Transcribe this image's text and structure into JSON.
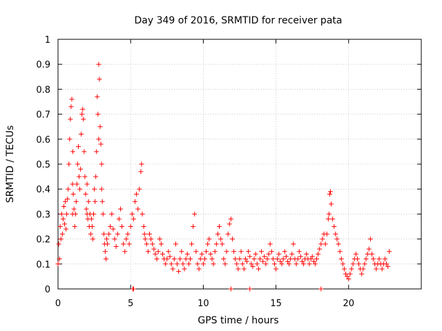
{
  "chart_data": {
    "type": "scatter",
    "title": "Day 349 of 2016, SRMTID for receiver pata",
    "xlabel": "GPS time / hours",
    "ylabel": "SRMTID / TECUs",
    "xlim": [
      0,
      25
    ],
    "ylim": [
      0,
      1
    ],
    "xticks": [
      0,
      5,
      10,
      15,
      20
    ],
    "yticks": [
      0,
      0.1,
      0.2,
      0.3,
      0.4,
      0.5,
      0.6,
      0.7,
      0.8,
      0.9,
      1
    ],
    "grid": true,
    "marker": "+",
    "series": [
      {
        "name": "pata",
        "color": "#ff0000",
        "x": [
          0.0,
          0.05,
          0.1,
          0.15,
          0.2,
          0.25,
          0.3,
          0.35,
          0.4,
          0.45,
          0.5,
          0.55,
          0.6,
          0.65,
          0.7,
          0.75,
          0.8,
          0.85,
          0.9,
          0.95,
          1.0,
          1.0,
          1.02,
          1.05,
          1.1,
          1.15,
          1.2,
          1.25,
          1.3,
          1.35,
          1.4,
          1.45,
          1.5,
          1.55,
          1.6,
          1.65,
          1.7,
          1.75,
          1.8,
          1.85,
          1.9,
          1.95,
          2.0,
          2.0,
          2.05,
          2.1,
          2.15,
          2.2,
          2.25,
          2.3,
          2.35,
          2.4,
          2.45,
          2.5,
          2.55,
          2.6,
          2.65,
          2.7,
          2.75,
          2.8,
          2.8,
          2.85,
          2.9,
          2.95,
          3.0,
          3.0,
          3.05,
          3.1,
          3.15,
          3.2,
          3.25,
          3.3,
          3.35,
          3.4,
          3.5,
          3.6,
          3.7,
          3.8,
          3.9,
          4.0,
          4.1,
          4.2,
          4.3,
          4.4,
          4.5,
          4.6,
          4.7,
          4.8,
          4.9,
          5.0,
          5.1,
          5.2,
          5.3,
          5.4,
          5.5,
          5.6,
          5.7,
          5.75,
          5.8,
          5.9,
          5.95,
          6.0,
          6.1,
          6.2,
          6.3,
          6.4,
          6.5,
          6.6,
          6.7,
          6.8,
          6.9,
          7.0,
          7.1,
          7.2,
          7.3,
          7.4,
          7.5,
          7.6,
          7.7,
          7.8,
          7.9,
          8.0,
          8.1,
          8.2,
          8.3,
          8.4,
          8.5,
          8.6,
          8.7,
          8.8,
          8.9,
          9.0,
          9.1,
          9.2,
          9.3,
          9.4,
          9.5,
          9.6,
          9.7,
          9.8,
          9.9,
          10.0,
          10.1,
          10.2,
          10.3,
          10.4,
          10.5,
          10.6,
          10.7,
          10.8,
          10.9,
          11.0,
          11.1,
          11.2,
          11.3,
          11.4,
          11.5,
          11.6,
          11.7,
          11.8,
          11.9,
          12.0,
          12.1,
          12.2,
          12.3,
          12.4,
          12.5,
          12.6,
          12.7,
          12.8,
          12.9,
          13.0,
          13.1,
          13.2,
          13.3,
          13.4,
          13.5,
          13.6,
          13.7,
          13.8,
          13.9,
          14.0,
          14.1,
          14.2,
          14.3,
          14.4,
          14.5,
          14.6,
          14.7,
          14.8,
          14.9,
          15.0,
          15.1,
          15.2,
          15.3,
          15.4,
          15.5,
          15.6,
          15.7,
          15.8,
          15.9,
          16.0,
          16.1,
          16.2,
          16.3,
          16.4,
          16.5,
          16.6,
          16.7,
          16.8,
          16.9,
          17.0,
          17.1,
          17.2,
          17.3,
          17.4,
          17.5,
          17.6,
          17.7,
          17.8,
          17.9,
          18.0,
          18.1,
          18.2,
          18.3,
          18.4,
          18.5,
          18.6,
          18.65,
          18.7,
          18.75,
          18.8,
          18.9,
          19.0,
          19.1,
          19.2,
          19.3,
          19.4,
          19.5,
          19.6,
          19.7,
          19.8,
          19.9,
          20.0,
          20.1,
          20.2,
          20.3,
          20.4,
          20.5,
          20.6,
          20.7,
          20.8,
          20.9,
          21.0,
          21.1,
          21.2,
          21.3,
          21.4,
          21.5,
          21.6,
          21.7,
          21.8,
          21.9,
          22.0,
          22.1,
          22.2,
          22.3,
          22.4,
          22.5,
          22.6,
          22.7,
          22.8,
          5.15,
          5.2,
          11.9,
          13.2,
          18.1
        ],
        "y": [
          0.1,
          0.18,
          0.12,
          0.25,
          0.2,
          0.3,
          0.22,
          0.28,
          0.33,
          0.26,
          0.35,
          0.24,
          0.3,
          0.36,
          0.4,
          0.5,
          0.6,
          0.68,
          0.73,
          0.76,
          0.3,
          0.42,
          0.55,
          0.38,
          0.32,
          0.25,
          0.3,
          0.35,
          0.42,
          0.5,
          0.57,
          0.45,
          0.4,
          0.48,
          0.62,
          0.7,
          0.72,
          0.68,
          0.55,
          0.45,
          0.38,
          0.32,
          0.3,
          0.42,
          0.28,
          0.35,
          0.25,
          0.3,
          0.22,
          0.28,
          0.25,
          0.2,
          0.3,
          0.4,
          0.35,
          0.45,
          0.55,
          0.77,
          0.7,
          0.6,
          0.9,
          0.84,
          0.65,
          0.58,
          0.5,
          0.4,
          0.35,
          0.3,
          0.22,
          0.18,
          0.15,
          0.12,
          0.2,
          0.18,
          0.22,
          0.25,
          0.3,
          0.24,
          0.2,
          0.17,
          0.22,
          0.28,
          0.32,
          0.25,
          0.18,
          0.15,
          0.2,
          0.22,
          0.18,
          0.25,
          0.3,
          0.28,
          0.35,
          0.38,
          0.32,
          0.4,
          0.47,
          0.5,
          0.3,
          0.25,
          0.22,
          0.2,
          0.18,
          0.15,
          0.22,
          0.2,
          0.18,
          0.16,
          0.14,
          0.12,
          0.15,
          0.2,
          0.18,
          0.14,
          0.12,
          0.1,
          0.12,
          0.15,
          0.13,
          0.1,
          0.08,
          0.12,
          0.18,
          0.1,
          0.07,
          0.12,
          0.15,
          0.1,
          0.08,
          0.12,
          0.14,
          0.1,
          0.12,
          0.18,
          0.25,
          0.3,
          0.15,
          0.1,
          0.08,
          0.12,
          0.14,
          0.1,
          0.12,
          0.15,
          0.18,
          0.2,
          0.14,
          0.12,
          0.1,
          0.15,
          0.18,
          0.22,
          0.25,
          0.2,
          0.18,
          0.12,
          0.1,
          0.15,
          0.22,
          0.26,
          0.28,
          0.2,
          0.15,
          0.12,
          0.1,
          0.08,
          0.12,
          0.15,
          0.1,
          0.08,
          0.12,
          0.11,
          0.15,
          0.13,
          0.1,
          0.09,
          0.12,
          0.14,
          0.1,
          0.08,
          0.12,
          0.15,
          0.11,
          0.13,
          0.1,
          0.12,
          0.14,
          0.18,
          0.15,
          0.12,
          0.1,
          0.08,
          0.12,
          0.14,
          0.11,
          0.1,
          0.12,
          0.15,
          0.13,
          0.11,
          0.1,
          0.12,
          0.14,
          0.18,
          0.12,
          0.1,
          0.12,
          0.15,
          0.13,
          0.11,
          0.1,
          0.12,
          0.14,
          0.12,
          0.1,
          0.12,
          0.13,
          0.11,
          0.1,
          0.12,
          0.14,
          0.16,
          0.18,
          0.2,
          0.22,
          0.18,
          0.22,
          0.28,
          0.3,
          0.38,
          0.39,
          0.34,
          0.28,
          0.25,
          0.22,
          0.2,
          0.18,
          0.15,
          0.12,
          0.1,
          0.08,
          0.06,
          0.05,
          0.04,
          0.06,
          0.08,
          0.1,
          0.12,
          0.14,
          0.12,
          0.1,
          0.08,
          0.06,
          0.08,
          0.1,
          0.12,
          0.14,
          0.16,
          0.2,
          0.14,
          0.12,
          0.1,
          0.08,
          0.1,
          0.12,
          0.1,
          0.08,
          0.1,
          0.12,
          0.1,
          0.09,
          0.15,
          0.0,
          0.0,
          0.0,
          0.0,
          0.0
        ]
      }
    ]
  }
}
